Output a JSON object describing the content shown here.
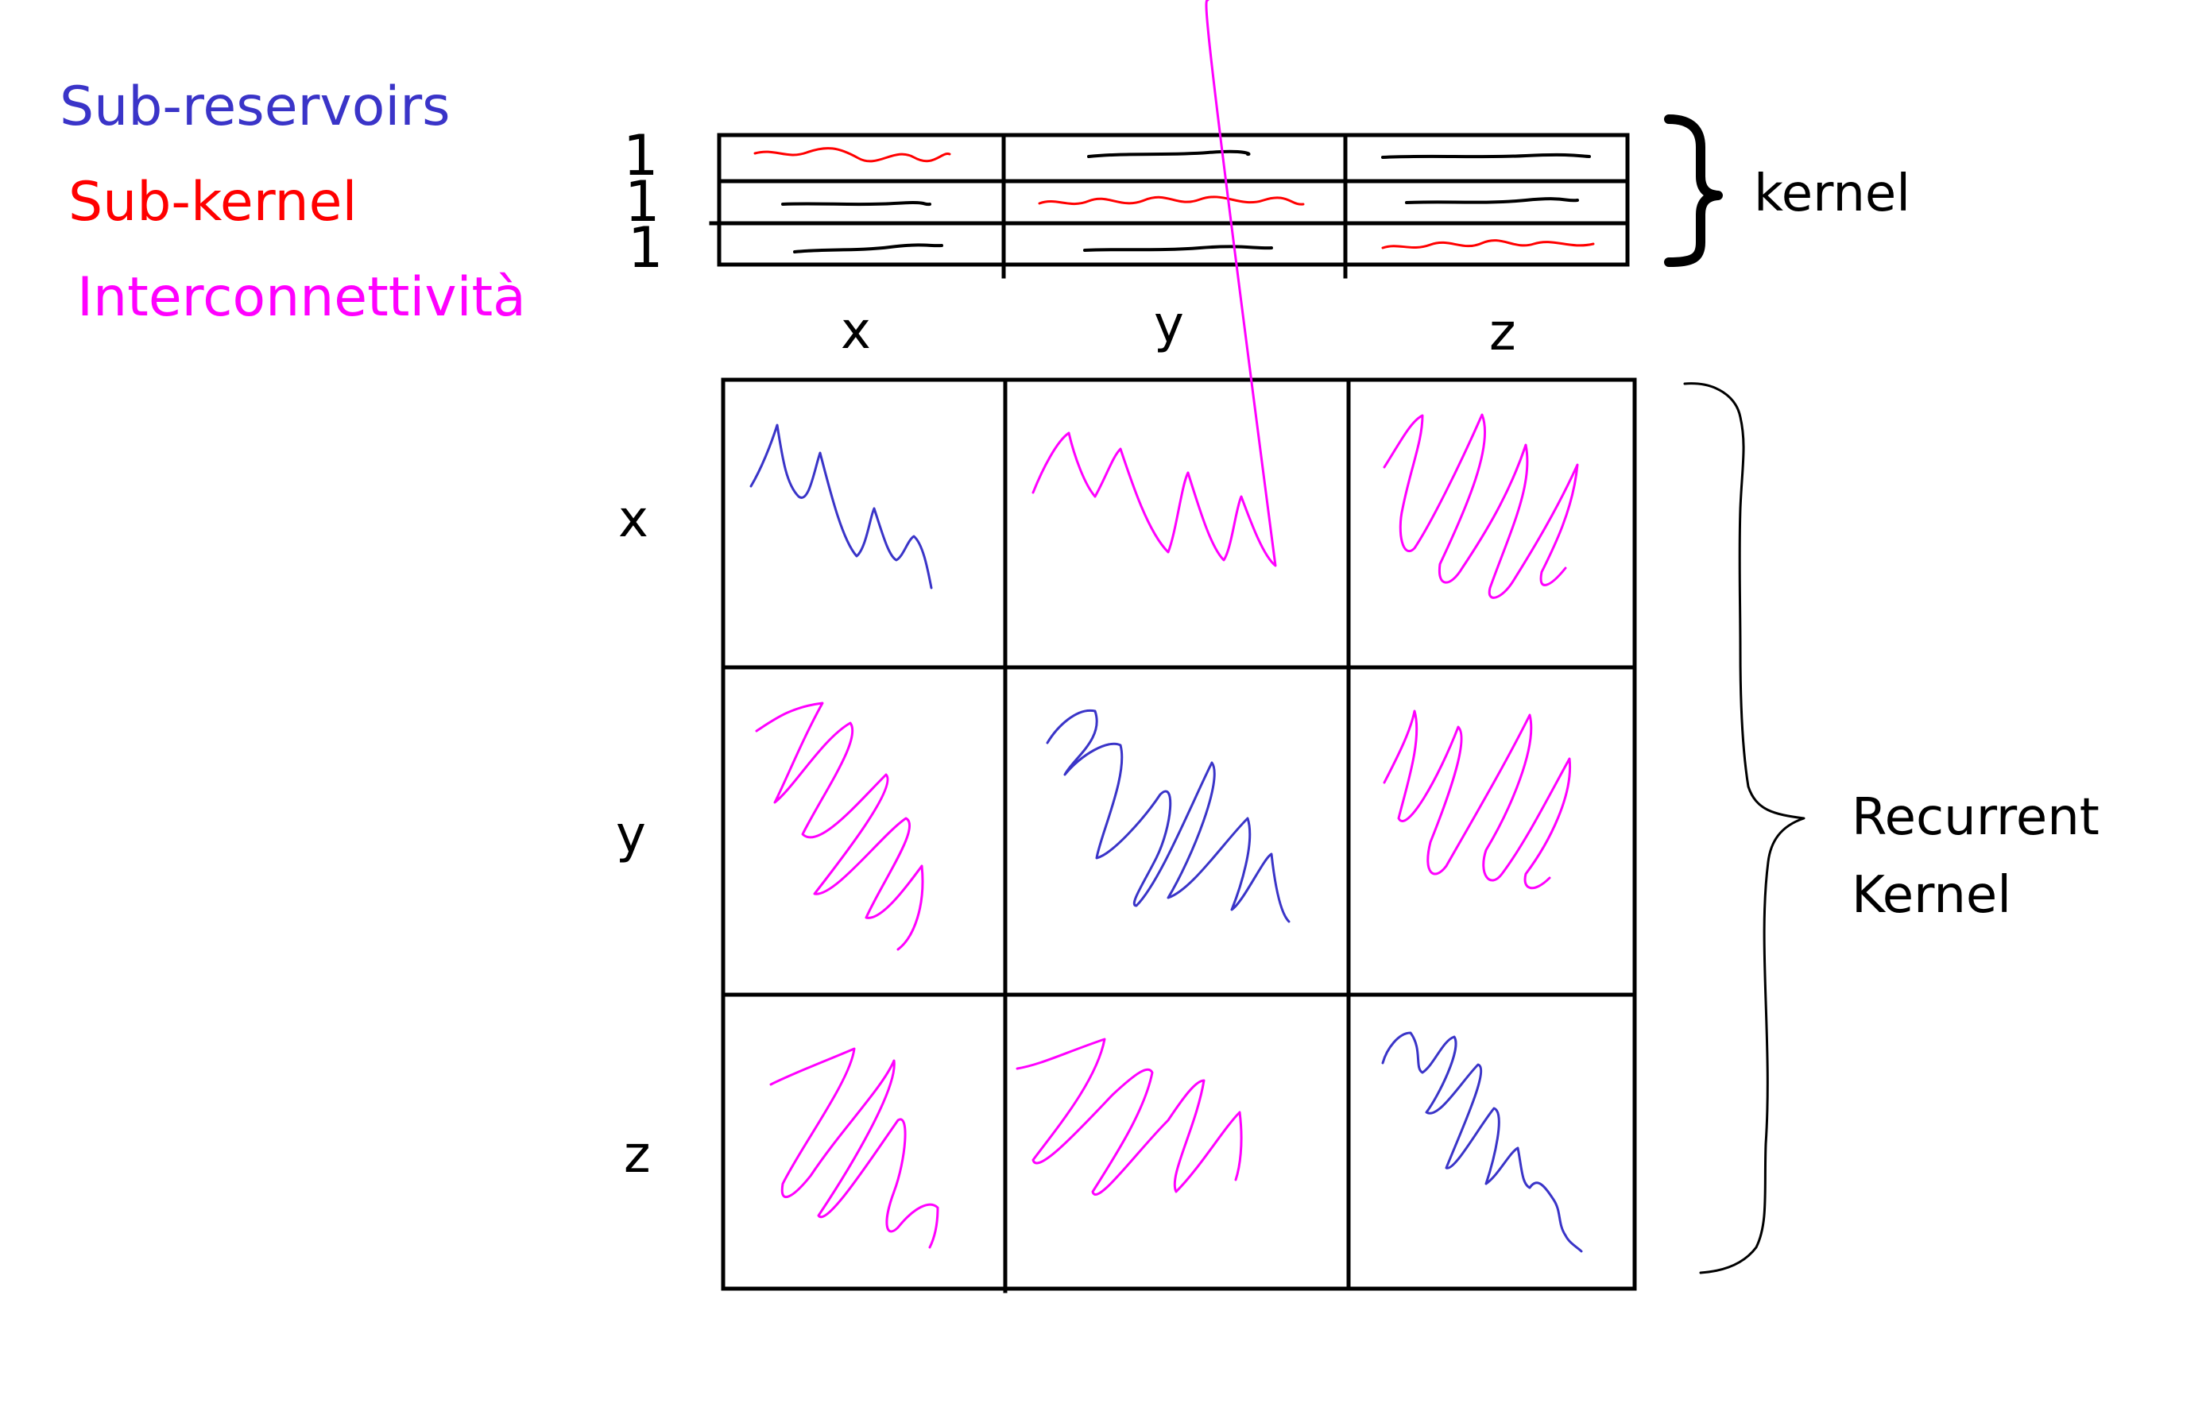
{
  "legend": [
    {
      "key": "sub_reservoirs",
      "label": "Sub-reservoirs",
      "color": "#3a34c8"
    },
    {
      "key": "sub_kernel",
      "label": "Sub-kernel",
      "color": "#ff0000"
    },
    {
      "key": "interconnectivity",
      "label": "Interconnettività",
      "color": "#ff00ff"
    }
  ],
  "kernel": {
    "label": "kernel",
    "row_values": [
      "1",
      "1",
      "1"
    ]
  },
  "recurrent_kernel": {
    "label_line1": "Recurrent",
    "label_line2": "Kernel"
  },
  "axes": {
    "columns": [
      "x",
      "y",
      "z"
    ],
    "rows": [
      "x",
      "y",
      "z"
    ]
  },
  "colors": {
    "sub_reservoir": "#3a34c8",
    "sub_kernel": "#ff0000",
    "interconnectivity": "#ff00ff",
    "plain_stroke": "#000000"
  }
}
